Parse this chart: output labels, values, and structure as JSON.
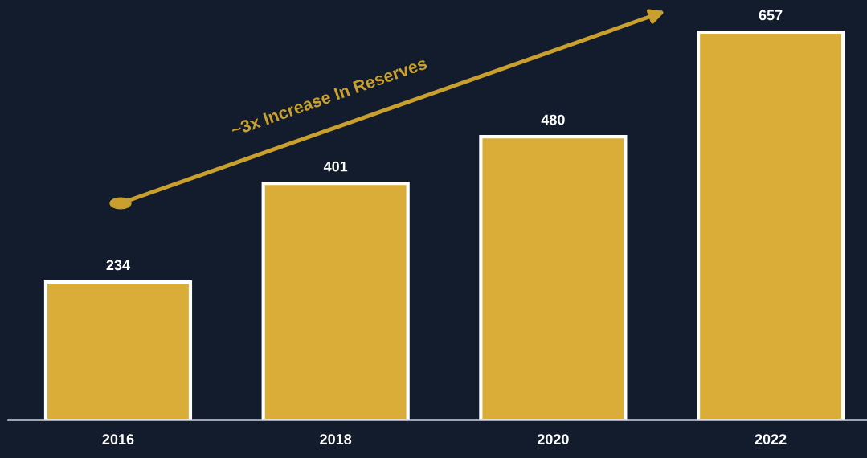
{
  "chart_data": {
    "type": "bar",
    "categories": [
      "2016",
      "2018",
      "2020",
      "2022"
    ],
    "values": [
      234,
      401,
      480,
      657
    ],
    "color": "#d9ad37",
    "ylim": [
      0,
      710
    ],
    "data_labels": true,
    "grid": false,
    "legend": false,
    "annotations": [
      "~3x Increase In Reserves"
    ]
  }
}
